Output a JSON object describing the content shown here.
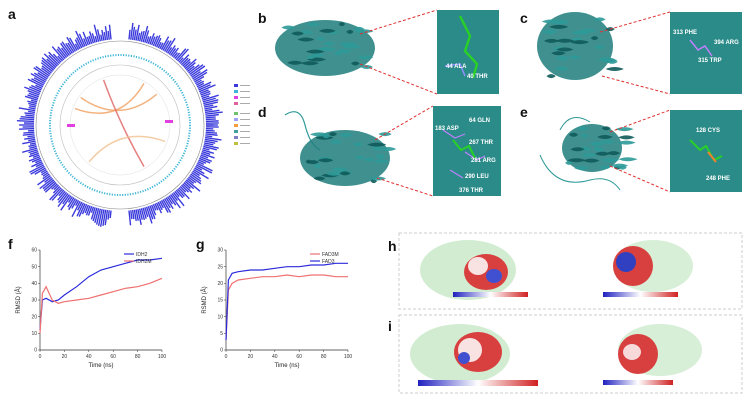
{
  "panels": {
    "a": "a",
    "b": "b",
    "c": "c",
    "d": "d",
    "e": "e",
    "f": "f",
    "g": "g",
    "h": "h",
    "i": "i"
  },
  "residues": {
    "b": [
      "44 ALA",
      "40 THR"
    ],
    "c": [
      "313 PHE",
      "394 ARG",
      "315 TRP"
    ],
    "d": [
      "183 ASP",
      "64 GLN",
      "267 THR",
      "281 ARG",
      "290 LEU",
      "376 THR"
    ],
    "e": [
      "128 CYS",
      "248 PHE"
    ]
  },
  "chart_data": [
    {
      "type": "line",
      "panel": "f",
      "xlabel": "Time (ns)",
      "ylabel": "RMSD (Å)",
      "xlim": [
        0,
        100
      ],
      "ylim": [
        0,
        60
      ],
      "xticks": [
        "0",
        "20",
        "40",
        "60",
        "80",
        "100"
      ],
      "yticks": [
        "0",
        "10",
        "20",
        "30",
        "40",
        "50",
        "60"
      ],
      "legend_position": "top-right",
      "series": [
        {
          "name": "IDH2",
          "color": "#2b2bdc",
          "x": [
            0,
            2,
            5,
            10,
            15,
            20,
            30,
            40,
            50,
            60,
            70,
            80,
            90,
            100
          ],
          "y": [
            12,
            30,
            31,
            29,
            30,
            33,
            38,
            44,
            48,
            50,
            52,
            54,
            54,
            55
          ]
        },
        {
          "name": "IDH2M",
          "color": "#f07070",
          "x": [
            0,
            2,
            5,
            10,
            15,
            20,
            30,
            40,
            50,
            60,
            70,
            80,
            90,
            100
          ],
          "y": [
            10,
            34,
            38,
            30,
            28,
            29,
            30,
            31,
            33,
            35,
            37,
            38,
            40,
            43
          ]
        }
      ]
    },
    {
      "type": "line",
      "panel": "g",
      "xlabel": "Time (ns)",
      "ylabel": "RSMD (Å)",
      "xlim": [
        0,
        100
      ],
      "ylim": [
        0,
        30
      ],
      "xticks": [
        "0",
        "20",
        "40",
        "60",
        "80",
        "100"
      ],
      "yticks": [
        "0",
        "5",
        "10",
        "15",
        "20",
        "25",
        "30"
      ],
      "legend_position": "top-right",
      "series": [
        {
          "name": "FAD3M",
          "color": "#f07070",
          "x": [
            0,
            2,
            5,
            10,
            20,
            30,
            40,
            50,
            60,
            70,
            80,
            90,
            100
          ],
          "y": [
            3,
            18,
            20,
            21,
            21.5,
            22,
            22,
            22.5,
            22,
            22.5,
            22.5,
            22,
            22
          ]
        },
        {
          "name": "FAD3",
          "color": "#2b2bdc",
          "x": [
            0,
            2,
            5,
            10,
            20,
            30,
            40,
            50,
            60,
            70,
            80,
            90,
            100
          ],
          "y": [
            3,
            21,
            23,
            23.5,
            24,
            24,
            24.5,
            25,
            25,
            25.5,
            25.5,
            26,
            26
          ]
        }
      ]
    }
  ],
  "colors": {
    "protein": "#1f7c7c",
    "protein_light": "#2e9a98",
    "ghost": "#9bd49b",
    "dash_red": "#e03030",
    "circos_blue": "#3a3adc",
    "circos_cyan": "#3fb6d8"
  }
}
